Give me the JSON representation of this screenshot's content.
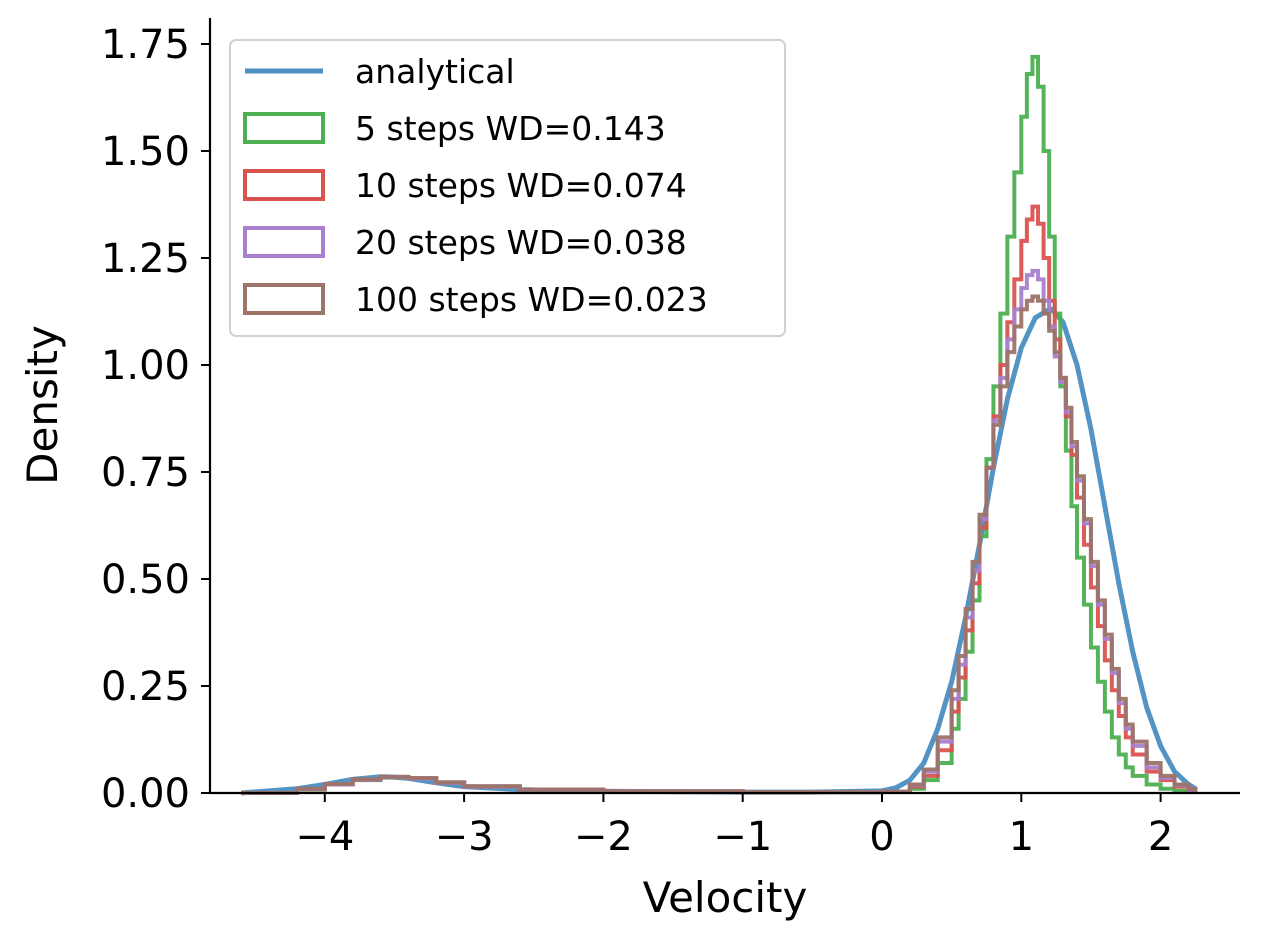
{
  "chart_data": {
    "type": "line",
    "title": "",
    "xlabel": "Velocity",
    "ylabel": "Density",
    "xlim": [
      -4.85,
      2.6
    ],
    "ylim": [
      0,
      1.8
    ],
    "xticks": [
      -4,
      -3,
      -2,
      -1,
      0,
      1,
      2
    ],
    "xtick_labels": [
      "−4",
      "−3",
      "−2",
      "−1",
      "0",
      "1",
      "2"
    ],
    "yticks": [
      0,
      0.25,
      0.5,
      0.75,
      1.0,
      1.25,
      1.5,
      1.75
    ],
    "ytick_labels": [
      "0.00",
      "0.25",
      "0.50",
      "0.75",
      "1.00",
      "1.25",
      "1.50",
      "1.75"
    ],
    "grid": false,
    "legend_position": "top-left",
    "series": [
      {
        "name": "analytical",
        "style": "line",
        "color": "#4b8ec1",
        "x": [
          -4.6,
          -4.2,
          -4.0,
          -3.8,
          -3.6,
          -3.5,
          -3.4,
          -3.2,
          -3.0,
          -2.6,
          -2.0,
          -1.0,
          -0.5,
          0.0,
          0.1,
          0.2,
          0.3,
          0.4,
          0.5,
          0.6,
          0.7,
          0.8,
          0.9,
          1.0,
          1.1,
          1.2,
          1.22,
          1.3,
          1.4,
          1.5,
          1.6,
          1.7,
          1.8,
          1.9,
          2.0,
          2.1,
          2.2,
          2.25
        ],
        "y": [
          0.0,
          0.01,
          0.02,
          0.032,
          0.038,
          0.037,
          0.034,
          0.024,
          0.015,
          0.008,
          0.004,
          0.002,
          0.002,
          0.005,
          0.012,
          0.03,
          0.07,
          0.15,
          0.26,
          0.41,
          0.58,
          0.76,
          0.92,
          1.04,
          1.11,
          1.13,
          1.13,
          1.1,
          1.0,
          0.85,
          0.67,
          0.49,
          0.33,
          0.2,
          0.11,
          0.05,
          0.02,
          0.01
        ]
      },
      {
        "name": "5 steps WD=0.143",
        "style": "step",
        "color": "#4caf50",
        "x": [
          -4.6,
          -4.2,
          -4.0,
          -3.8,
          -3.6,
          -3.4,
          -3.2,
          -3.0,
          -2.6,
          -2.0,
          -1.0,
          0.0,
          0.2,
          0.3,
          0.4,
          0.5,
          0.55,
          0.6,
          0.65,
          0.7,
          0.75,
          0.8,
          0.85,
          0.9,
          0.95,
          1.0,
          1.04,
          1.08,
          1.12,
          1.16,
          1.2,
          1.24,
          1.28,
          1.32,
          1.36,
          1.4,
          1.45,
          1.5,
          1.55,
          1.6,
          1.65,
          1.7,
          1.75,
          1.8,
          1.9,
          2.0,
          2.1,
          2.2,
          2.25
        ],
        "y": [
          0.0,
          0.008,
          0.02,
          0.03,
          0.036,
          0.034,
          0.024,
          0.015,
          0.008,
          0.004,
          0.002,
          0.003,
          0.01,
          0.03,
          0.07,
          0.15,
          0.22,
          0.33,
          0.45,
          0.6,
          0.78,
          0.95,
          1.12,
          1.3,
          1.45,
          1.58,
          1.68,
          1.72,
          1.65,
          1.5,
          1.3,
          1.12,
          0.95,
          0.8,
          0.67,
          0.55,
          0.44,
          0.34,
          0.26,
          0.19,
          0.13,
          0.09,
          0.06,
          0.04,
          0.02,
          0.01,
          0.005,
          0.002,
          0.0
        ]
      },
      {
        "name": "10 steps WD=0.074",
        "style": "step",
        "color": "#d9534f",
        "x": [
          -4.6,
          -4.2,
          -4.0,
          -3.8,
          -3.6,
          -3.4,
          -3.2,
          -3.0,
          -2.6,
          -2.0,
          -1.0,
          0.0,
          0.2,
          0.3,
          0.4,
          0.5,
          0.55,
          0.6,
          0.65,
          0.7,
          0.75,
          0.8,
          0.85,
          0.9,
          0.95,
          1.0,
          1.04,
          1.08,
          1.12,
          1.16,
          1.2,
          1.24,
          1.28,
          1.32,
          1.36,
          1.4,
          1.45,
          1.5,
          1.55,
          1.6,
          1.65,
          1.7,
          1.75,
          1.8,
          1.9,
          2.0,
          2.1,
          2.2,
          2.25
        ],
        "y": [
          0.0,
          0.009,
          0.02,
          0.031,
          0.037,
          0.034,
          0.024,
          0.015,
          0.008,
          0.004,
          0.002,
          0.003,
          0.015,
          0.04,
          0.1,
          0.19,
          0.27,
          0.38,
          0.49,
          0.62,
          0.76,
          0.88,
          1.0,
          1.1,
          1.2,
          1.29,
          1.34,
          1.37,
          1.33,
          1.25,
          1.15,
          1.06,
          0.97,
          0.88,
          0.79,
          0.69,
          0.58,
          0.48,
          0.39,
          0.31,
          0.24,
          0.18,
          0.13,
          0.09,
          0.05,
          0.03,
          0.015,
          0.007,
          0.0
        ]
      },
      {
        "name": "20 steps WD=0.038",
        "style": "step",
        "color": "#a97fcf",
        "x": [
          -4.6,
          -4.2,
          -4.0,
          -3.8,
          -3.6,
          -3.4,
          -3.2,
          -3.0,
          -2.6,
          -2.0,
          -1.0,
          0.0,
          0.2,
          0.3,
          0.4,
          0.5,
          0.55,
          0.6,
          0.65,
          0.7,
          0.75,
          0.8,
          0.85,
          0.9,
          0.95,
          1.0,
          1.04,
          1.08,
          1.12,
          1.16,
          1.2,
          1.24,
          1.28,
          1.32,
          1.36,
          1.4,
          1.45,
          1.5,
          1.55,
          1.6,
          1.65,
          1.7,
          1.75,
          1.8,
          1.9,
          2.0,
          2.1,
          2.2,
          2.25
        ],
        "y": [
          0.0,
          0.009,
          0.02,
          0.031,
          0.037,
          0.034,
          0.024,
          0.015,
          0.008,
          0.004,
          0.002,
          0.003,
          0.018,
          0.05,
          0.12,
          0.22,
          0.3,
          0.41,
          0.52,
          0.64,
          0.76,
          0.87,
          0.97,
          1.06,
          1.13,
          1.18,
          1.21,
          1.22,
          1.2,
          1.15,
          1.09,
          1.02,
          0.96,
          0.89,
          0.81,
          0.73,
          0.63,
          0.53,
          0.44,
          0.36,
          0.28,
          0.21,
          0.15,
          0.11,
          0.06,
          0.035,
          0.018,
          0.008,
          0.0
        ]
      },
      {
        "name": "100 steps WD=0.023",
        "style": "step",
        "color": "#9c7468",
        "x": [
          -4.6,
          -4.2,
          -4.0,
          -3.8,
          -3.6,
          -3.4,
          -3.2,
          -3.0,
          -2.6,
          -2.0,
          -1.0,
          0.0,
          0.2,
          0.3,
          0.4,
          0.5,
          0.55,
          0.6,
          0.65,
          0.7,
          0.75,
          0.8,
          0.85,
          0.9,
          0.95,
          1.0,
          1.04,
          1.08,
          1.12,
          1.16,
          1.2,
          1.24,
          1.28,
          1.32,
          1.36,
          1.4,
          1.45,
          1.5,
          1.55,
          1.6,
          1.65,
          1.7,
          1.75,
          1.8,
          1.9,
          2.0,
          2.1,
          2.2,
          2.25
        ],
        "y": [
          0.0,
          0.01,
          0.021,
          0.032,
          0.038,
          0.035,
          0.025,
          0.016,
          0.008,
          0.004,
          0.002,
          0.003,
          0.02,
          0.055,
          0.13,
          0.24,
          0.32,
          0.43,
          0.54,
          0.65,
          0.76,
          0.86,
          0.95,
          1.03,
          1.09,
          1.13,
          1.15,
          1.16,
          1.15,
          1.12,
          1.08,
          1.03,
          0.97,
          0.9,
          0.82,
          0.74,
          0.64,
          0.54,
          0.45,
          0.37,
          0.29,
          0.22,
          0.16,
          0.12,
          0.07,
          0.04,
          0.02,
          0.01,
          0.0
        ]
      }
    ]
  }
}
